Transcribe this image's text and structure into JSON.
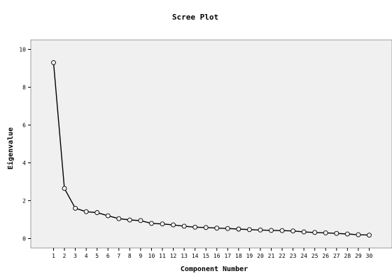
{
  "chart_data": {
    "type": "line",
    "title": "Scree Plot",
    "xlabel": "Component Number",
    "ylabel": "Eigenvalue",
    "x": [
      1,
      2,
      3,
      4,
      5,
      6,
      7,
      8,
      9,
      10,
      11,
      12,
      13,
      14,
      15,
      16,
      17,
      18,
      19,
      20,
      21,
      22,
      23,
      24,
      25,
      26,
      27,
      28,
      29,
      30
    ],
    "series": [
      {
        "values": [
          9.3,
          2.65,
          1.6,
          1.42,
          1.37,
          1.2,
          1.05,
          0.98,
          0.95,
          0.8,
          0.77,
          0.72,
          0.65,
          0.6,
          0.58,
          0.55,
          0.53,
          0.5,
          0.47,
          0.45,
          0.43,
          0.42,
          0.4,
          0.35,
          0.32,
          0.3,
          0.27,
          0.24,
          0.2,
          0.18
        ]
      }
    ],
    "ylim": [
      -0.5,
      10.5
    ],
    "yticks": [
      0,
      2,
      4,
      6,
      8,
      10
    ],
    "grid": false,
    "colors": {
      "plot_background": "#f0f0f0",
      "line": "#000000",
      "marker_fill": "#f0f0f0"
    }
  }
}
